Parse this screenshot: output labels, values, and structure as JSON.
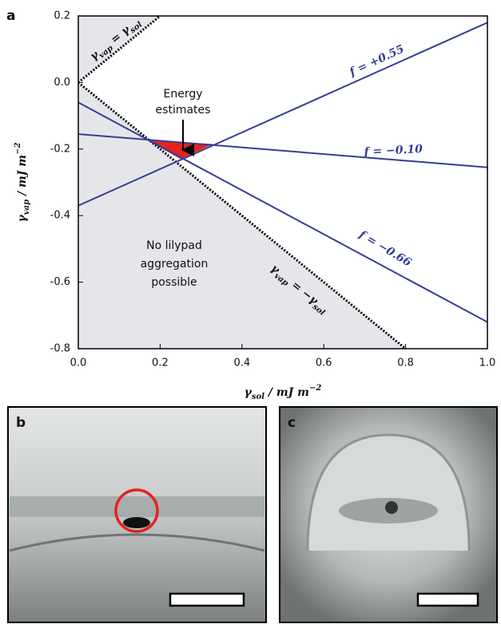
{
  "chart_data": {
    "type": "line",
    "panel_label": "a",
    "x_label": [
      {
        "text": "γ"
      },
      {
        "sub": "sol"
      },
      {
        "text": " / mJ m"
      },
      {
        "sup": "−2"
      }
    ],
    "y_label": [
      {
        "text": "γ"
      },
      {
        "sub": "vap"
      },
      {
        "text": " / mJ m"
      },
      {
        "sup": "−2"
      }
    ],
    "xlim": [
      0,
      1
    ],
    "ylim": [
      -0.8,
      0.2
    ],
    "xticks": [
      {
        "value": 0,
        "label": "0.0"
      },
      0.2,
      0.4,
      0.6,
      0.8,
      {
        "value": 1,
        "label": "1.0"
      }
    ],
    "yticks": [
      -0.8,
      -0.6,
      -0.4,
      -0.2,
      {
        "value": 0,
        "label": "0.0"
      },
      0.2
    ],
    "series": [
      {
        "name": "f = +0.55",
        "color": "#363c98",
        "x": [
          0,
          1
        ],
        "values": [
          -0.37,
          0.18
        ]
      },
      {
        "name": "f = −0.10",
        "color": "#363c98",
        "x": [
          0,
          1
        ],
        "values": [
          -0.155,
          -0.255
        ]
      },
      {
        "name": "f = −0.66",
        "color": "#363c98",
        "x": [
          0,
          1
        ],
        "values": [
          -0.06,
          -0.72
        ]
      }
    ],
    "reference_lines": [
      {
        "label": [
          {
            "text": "γ"
          },
          {
            "sub": "vap"
          },
          {
            "text": " = γ"
          },
          {
            "sub": "sol"
          }
        ],
        "color": "#000000",
        "x": [
          0,
          0.2
        ],
        "values": [
          0,
          0.2
        ]
      },
      {
        "label": [
          {
            "text": "γ"
          },
          {
            "sub": "vap"
          },
          {
            "text": " = −γ"
          },
          {
            "sub": "sol"
          }
        ],
        "color": "#000000",
        "x": [
          0,
          0.8
        ],
        "values": [
          0,
          -0.8
        ]
      }
    ],
    "highlight": {
      "color": "#e5231f",
      "x": [
        0.17,
        0.33,
        0.25
      ],
      "values": [
        -0.175,
        -0.185,
        -0.23
      ]
    },
    "annotations": {
      "energy": [
        "Energy",
        "estimates"
      ],
      "region": [
        "No lilypad",
        "aggregation",
        "possible"
      ]
    }
  },
  "images": [
    {
      "panel_label": "b"
    },
    {
      "panel_label": "c"
    }
  ]
}
